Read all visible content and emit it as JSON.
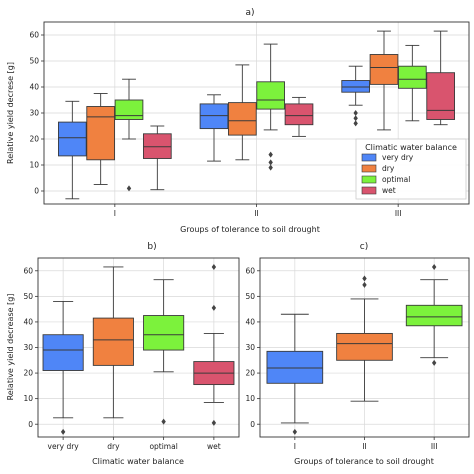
{
  "colors": {
    "very dry": "#4f86f7",
    "dry": "#f08140",
    "optimal": "#7cf23c",
    "wet": "#d9546e"
  },
  "chart_data": [
    {
      "type": "box",
      "title": "a)",
      "xlabel": "Groups of tolerance to soil drought",
      "ylabel": "Relative yield decrese [g]",
      "categories": [
        "I",
        "II",
        "III"
      ],
      "ylim": [
        -5,
        65
      ],
      "yticks": [
        0,
        10,
        20,
        30,
        40,
        50,
        60
      ],
      "grid": true,
      "legend": {
        "title": "Climatic water balance",
        "entries": [
          "very dry",
          "dry",
          "optimal",
          "wet"
        ],
        "position": "lower-right"
      },
      "series": [
        {
          "name": "very dry",
          "boxes": [
            {
              "min": -3,
              "q1": 13.5,
              "median": 20.5,
              "q3": 26.5,
              "max": 34.5,
              "outliers": []
            },
            {
              "min": 11.5,
              "q1": 24,
              "median": 29,
              "q3": 33.5,
              "max": 37,
              "outliers": []
            },
            {
              "min": 33,
              "q1": 38,
              "median": 40,
              "q3": 42.5,
              "max": 48,
              "outliers": [
                26,
                28,
                30
              ]
            }
          ]
        },
        {
          "name": "dry",
          "boxes": [
            {
              "min": 2.5,
              "q1": 12,
              "median": 28.5,
              "q3": 32.5,
              "max": 37.5,
              "outliers": []
            },
            {
              "min": 12,
              "q1": 21.5,
              "median": 27,
              "q3": 34,
              "max": 48.5,
              "outliers": []
            },
            {
              "min": 23.5,
              "q1": 41,
              "median": 47.5,
              "q3": 52.5,
              "max": 61.5,
              "outliers": []
            }
          ]
        },
        {
          "name": "optimal",
          "boxes": [
            {
              "min": 20,
              "q1": 27.5,
              "median": 29,
              "q3": 35,
              "max": 43,
              "outliers": [
                1
              ]
            },
            {
              "min": 23.5,
              "q1": 31.5,
              "median": 35,
              "q3": 42,
              "max": 56.5,
              "outliers": [
                9,
                11,
                14
              ]
            },
            {
              "min": 27,
              "q1": 39.5,
              "median": 43,
              "q3": 48,
              "max": 56,
              "outliers": []
            }
          ]
        },
        {
          "name": "wet",
          "boxes": [
            {
              "min": 0.5,
              "q1": 12.5,
              "median": 17,
              "q3": 22,
              "max": 25,
              "outliers": []
            },
            {
              "min": 21,
              "q1": 25.5,
              "median": 29,
              "q3": 33.5,
              "max": 36,
              "outliers": []
            },
            {
              "min": 25.5,
              "q1": 27.5,
              "median": 31,
              "q3": 45.5,
              "max": 61.5,
              "outliers": []
            }
          ]
        }
      ]
    },
    {
      "type": "box",
      "title": "b)",
      "xlabel": "Climatic water balance",
      "ylabel": "Relative yield decrease [g]",
      "categories": [
        "very dry",
        "dry",
        "optimal",
        "wet"
      ],
      "ylim": [
        -5,
        65
      ],
      "yticks": [
        0,
        10,
        20,
        30,
        40,
        50,
        60
      ],
      "grid": true,
      "boxes": [
        {
          "name": "very dry",
          "min": 2.5,
          "q1": 21,
          "median": 29,
          "q3": 35,
          "max": 48,
          "outliers": [
            -3
          ]
        },
        {
          "name": "dry",
          "min": 2.5,
          "q1": 23,
          "median": 33,
          "q3": 41.5,
          "max": 61.5,
          "outliers": []
        },
        {
          "name": "optimal",
          "min": 20.5,
          "q1": 29,
          "median": 35,
          "q3": 42.5,
          "max": 56.5,
          "outliers": [
            1
          ]
        },
        {
          "name": "wet",
          "min": 8.5,
          "q1": 15.5,
          "median": 20,
          "q3": 24.5,
          "max": 35.5,
          "outliers": [
            0.5,
            45.5,
            61.5
          ]
        }
      ]
    },
    {
      "type": "box",
      "title": "c)",
      "xlabel": "Groups of tolerance to soil drought",
      "ylabel": "",
      "categories": [
        "I",
        "II",
        "III"
      ],
      "ylim": [
        -5,
        65
      ],
      "yticks": [
        0,
        10,
        20,
        30,
        40,
        50,
        60
      ],
      "grid": true,
      "boxes": [
        {
          "name": "I",
          "color": "#4f86f7",
          "min": 0.5,
          "q1": 16,
          "median": 22,
          "q3": 28.5,
          "max": 43,
          "outliers": [
            -3
          ]
        },
        {
          "name": "II",
          "color": "#f08140",
          "min": 9,
          "q1": 25,
          "median": 31.5,
          "q3": 35.5,
          "max": 49,
          "outliers": [
            54.5,
            57
          ]
        },
        {
          "name": "III",
          "color": "#7cf23c",
          "min": 26,
          "q1": 38.5,
          "median": 42,
          "q3": 46.5,
          "max": 56.5,
          "outliers": [
            24,
            61.5
          ]
        }
      ]
    }
  ]
}
